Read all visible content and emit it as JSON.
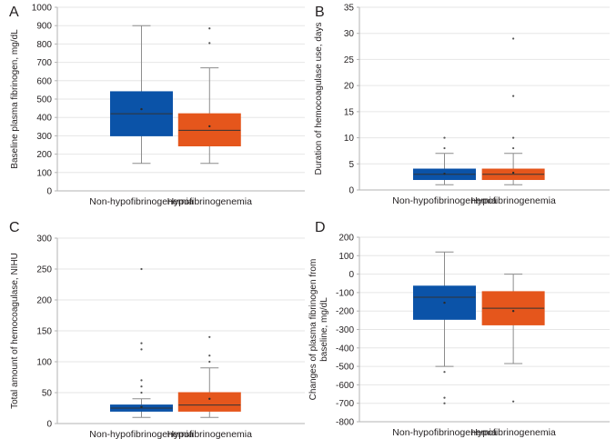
{
  "figure_colors": {
    "non_hypo": "#0b53a8",
    "hypo": "#e5561c",
    "whisker": "#8c8c8c",
    "grid": "#e6e6e6",
    "axis": "#b3b3b3"
  },
  "chart_data": [
    {
      "panel": "A",
      "type": "box",
      "ylabel": "Baseline plasma fibrinogen, mg/dL",
      "ylim": [
        0,
        1000
      ],
      "yticks": [
        0,
        100,
        200,
        300,
        400,
        500,
        600,
        700,
        800,
        900,
        1000
      ],
      "categories": [
        "Non-hypofibrinogenemia",
        "Hypofibrinogenemia"
      ],
      "series": [
        {
          "name": "Non-hypofibrinogenemia",
          "color_key": "non_hypo",
          "min": 150,
          "q1": 300,
          "median": 420,
          "q3": 540,
          "max": 900,
          "mean": 445,
          "outliers": []
        },
        {
          "name": "Hypofibrinogenemia",
          "color_key": "hypo",
          "min": 150,
          "q1": 245,
          "median": 330,
          "q3": 420,
          "max": 670,
          "mean": 352,
          "outliers": [
            805,
            885
          ]
        }
      ]
    },
    {
      "panel": "B",
      "type": "box",
      "ylabel": "Duration of hemocoagulase use, days",
      "ylim": [
        0,
        35
      ],
      "yticks": [
        0,
        5,
        10,
        15,
        20,
        25,
        30,
        35
      ],
      "categories": [
        "Non-hypofibrinogenemia",
        "Hypofibrinogenemia"
      ],
      "series": [
        {
          "name": "Non-hypofibrinogenemia",
          "color_key": "non_hypo",
          "min": 1,
          "q1": 2,
          "median": 3,
          "q3": 4,
          "max": 7,
          "mean": 3.1,
          "outliers": [
            8,
            10
          ]
        },
        {
          "name": "Hypofibrinogenemia",
          "color_key": "hypo",
          "min": 1,
          "q1": 2,
          "median": 3,
          "q3": 4,
          "max": 7,
          "mean": 3.3,
          "outliers": [
            8,
            10,
            18,
            29
          ]
        }
      ]
    },
    {
      "panel": "C",
      "type": "box",
      "ylabel": "Total amount of hemocoagulase, NIHU",
      "ylim": [
        0,
        300
      ],
      "yticks": [
        0,
        50,
        100,
        150,
        200,
        250,
        300
      ],
      "categories": [
        "Non-hypofibrinogenemia",
        "Hypofibrinogenemia"
      ],
      "series": [
        {
          "name": "Non-hypofibrinogenemia",
          "color_key": "non_hypo",
          "min": 10,
          "q1": 20,
          "median": 25,
          "q3": 30,
          "max": 40,
          "mean": 27,
          "outliers": [
            50,
            60,
            70,
            120,
            130,
            250
          ]
        },
        {
          "name": "Hypofibrinogenemia",
          "color_key": "hypo",
          "min": 10,
          "q1": 20,
          "median": 30,
          "q3": 50,
          "max": 90,
          "mean": 40,
          "outliers": [
            100,
            110,
            140
          ]
        }
      ]
    },
    {
      "panel": "D",
      "type": "box",
      "ylabel": "Changes of plasma fibrinogen from baseline, mg/dL",
      "ylim": [
        -800,
        200
      ],
      "yticks": [
        -800,
        -700,
        -600,
        -500,
        -400,
        -300,
        -200,
        -100,
        0,
        100,
        200
      ],
      "categories": [
        "Non-hypofibrinogenemia",
        "Hypofibrinogenemia"
      ],
      "series": [
        {
          "name": "Non-hypofibrinogenemia",
          "color_key": "non_hypo",
          "min": -500,
          "q1": -245,
          "median": -125,
          "q3": -65,
          "max": 120,
          "mean": -155,
          "outliers": [
            -530,
            -670,
            -700
          ]
        },
        {
          "name": "Hypofibrinogenemia",
          "color_key": "hypo",
          "min": -485,
          "q1": -275,
          "median": -185,
          "q3": -95,
          "max": 0,
          "mean": -200,
          "outliers": [
            -690
          ]
        }
      ]
    }
  ]
}
